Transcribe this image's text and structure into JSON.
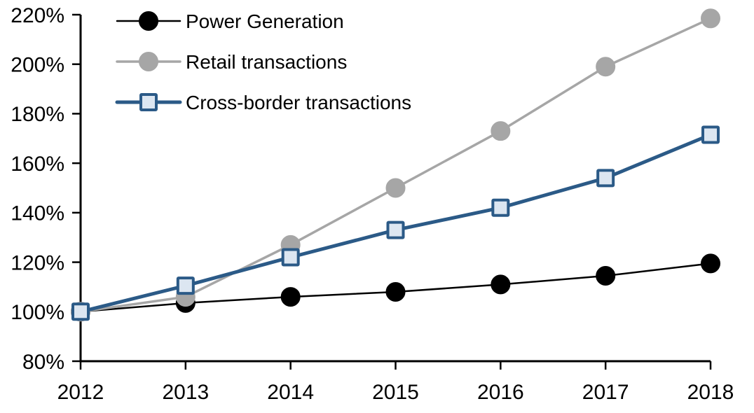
{
  "chart_data": {
    "type": "line",
    "title": "",
    "x": [
      2012,
      2013,
      2014,
      2015,
      2016,
      2017,
      2018
    ],
    "x_labels": [
      "2012",
      "2013",
      "2014",
      "2015",
      "2016",
      "2017",
      "2018"
    ],
    "y_tick_labels": [
      "80%",
      "100%",
      "120%",
      "140%",
      "160%",
      "180%",
      "200%",
      "220%"
    ],
    "ylim": [
      80,
      220
    ],
    "y_tick_step": 20,
    "unit": "%",
    "grid": false,
    "legend_position": "top-left-inside",
    "axis_color": "#000000",
    "series": [
      {
        "name": "Power Generation",
        "color": "#000000",
        "marker": "circle",
        "marker_fill": "#000000",
        "line_width": 2.5,
        "values": [
          100,
          103.5,
          106,
          108,
          111,
          114.5,
          119.5
        ]
      },
      {
        "name": "Retail transactions",
        "color": "#A6A6A6",
        "marker": "circle",
        "marker_fill": "#A6A6A6",
        "line_width": 3.5,
        "values": [
          100,
          106,
          127,
          150,
          173,
          199,
          218.5
        ]
      },
      {
        "name": "Cross-border transactions",
        "color": "#2B5A87",
        "marker": "square",
        "marker_fill": "#DCE6F1",
        "line_width": 5,
        "values": [
          100,
          110.5,
          122,
          133,
          142,
          154,
          171.5
        ]
      }
    ]
  }
}
